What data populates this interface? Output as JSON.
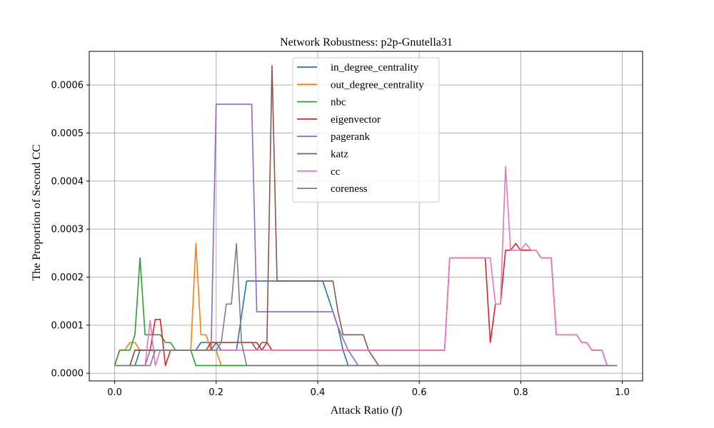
{
  "chart_data": {
    "type": "line",
    "title": "Network Robustness: p2p-Gnutella31",
    "xlabel": "Attack Ratio (",
    "xlabel_var": "f",
    "xlabel_end": ")",
    "ylabel": "The Proportion of Second CC",
    "xlim": [
      -0.05,
      1.04
    ],
    "ylim": [
      -1.6e-05,
      0.00067
    ],
    "xticks": [
      0.0,
      0.2,
      0.4,
      0.6,
      0.8,
      1.0
    ],
    "xtick_labels": [
      "0.0",
      "0.2",
      "0.4",
      "0.6",
      "0.8",
      "1.0"
    ],
    "yticks": [
      0.0,
      0.0001,
      0.0002,
      0.0003,
      0.0004,
      0.0005,
      0.0006
    ],
    "ytick_labels": [
      "0.0000",
      "0.0001",
      "0.0002",
      "0.0003",
      "0.0004",
      "0.0005",
      "0.0006"
    ],
    "grid": true,
    "legend_position": "top-center",
    "series": [
      {
        "name": "in_degree_centrality",
        "color": "#1f77b4",
        "points": [
          [
            0,
            1.6e-05
          ],
          [
            0.04,
            1.6e-05
          ],
          [
            0.05,
            4.8e-05
          ],
          [
            0.16,
            4.8e-05
          ],
          [
            0.17,
            6.4e-05
          ],
          [
            0.2,
            6.4e-05
          ],
          [
            0.21,
            4.8e-05
          ],
          [
            0.24,
            4.8e-05
          ],
          [
            0.26,
            0.000192
          ],
          [
            0.41,
            0.000192
          ],
          [
            0.43,
            0.000128
          ],
          [
            0.44,
            9.6e-05
          ],
          [
            0.45,
            4.8e-05
          ],
          [
            0.46,
            1.6e-05
          ],
          [
            0.99,
            1.6e-05
          ]
        ]
      },
      {
        "name": "out_degree_centrality",
        "color": "#ff7f0e",
        "points": [
          [
            0,
            1.6e-05
          ],
          [
            0.01,
            4.8e-05
          ],
          [
            0.02,
            4.8e-05
          ],
          [
            0.03,
            6.4e-05
          ],
          [
            0.04,
            6.4e-05
          ],
          [
            0.05,
            4.8e-05
          ],
          [
            0.15,
            4.8e-05
          ],
          [
            0.16,
            0.00027
          ],
          [
            0.17,
            8e-05
          ],
          [
            0.18,
            8e-05
          ],
          [
            0.19,
            4.8e-05
          ],
          [
            0.2,
            4.8e-05
          ],
          [
            0.21,
            1.6e-05
          ],
          [
            0.99,
            1.6e-05
          ]
        ]
      },
      {
        "name": "nbc",
        "color": "#2ca02c",
        "points": [
          [
            0,
            1.6e-05
          ],
          [
            0.01,
            4.8e-05
          ],
          [
            0.03,
            4.8e-05
          ],
          [
            0.04,
            8e-05
          ],
          [
            0.05,
            0.00024
          ],
          [
            0.06,
            8e-05
          ],
          [
            0.09,
            8e-05
          ],
          [
            0.1,
            6.4e-05
          ],
          [
            0.11,
            6.4e-05
          ],
          [
            0.12,
            4.8e-05
          ],
          [
            0.15,
            4.8e-05
          ],
          [
            0.16,
            1.6e-05
          ],
          [
            0.99,
            1.6e-05
          ]
        ]
      },
      {
        "name": "eigenvector",
        "color": "#d62728",
        "points": [
          [
            0,
            1.6e-05
          ],
          [
            0.03,
            1.6e-05
          ],
          [
            0.04,
            4.8e-05
          ],
          [
            0.07,
            4.8e-05
          ],
          [
            0.08,
            0.000112
          ],
          [
            0.09,
            0.000112
          ],
          [
            0.1,
            1.6e-05
          ],
          [
            0.11,
            4.8e-05
          ],
          [
            0.18,
            4.8e-05
          ],
          [
            0.19,
            6.4e-05
          ],
          [
            0.28,
            6.4e-05
          ],
          [
            0.29,
            4.8e-05
          ],
          [
            0.3,
            6.4e-05
          ],
          [
            0.31,
            4.8e-05
          ],
          [
            0.65,
            4.8e-05
          ],
          [
            0.66,
            0.00024
          ],
          [
            0.73,
            0.00024
          ],
          [
            0.74,
            6.4e-05
          ],
          [
            0.75,
            0.000144
          ],
          [
            0.76,
            0.000144
          ],
          [
            0.77,
            0.000256
          ],
          [
            0.78,
            0.000256
          ],
          [
            0.79,
            0.00027
          ],
          [
            0.8,
            0.000256
          ],
          [
            0.83,
            0.000256
          ],
          [
            0.84,
            0.00024
          ],
          [
            0.86,
            0.00024
          ],
          [
            0.87,
            8e-05
          ],
          [
            0.91,
            8e-05
          ],
          [
            0.92,
            6.4e-05
          ],
          [
            0.93,
            6.4e-05
          ],
          [
            0.94,
            4.8e-05
          ],
          [
            0.96,
            4.8e-05
          ],
          [
            0.97,
            1.6e-05
          ],
          [
            0.99,
            1.6e-05
          ]
        ]
      },
      {
        "name": "pagerank",
        "color": "#9467bd",
        "points": [
          [
            0,
            1.6e-05
          ],
          [
            0.06,
            1.6e-05
          ],
          [
            0.07,
            4.8e-05
          ],
          [
            0.19,
            4.8e-05
          ],
          [
            0.2,
            0.00056
          ],
          [
            0.27,
            0.00056
          ],
          [
            0.28,
            0.000128
          ],
          [
            0.42,
            0.000128
          ],
          [
            0.43,
            0.000128
          ],
          [
            0.44,
            9.6e-05
          ],
          [
            0.46,
            4.8e-05
          ],
          [
            0.47,
            3.2e-05
          ],
          [
            0.48,
            1.6e-05
          ],
          [
            0.99,
            1.6e-05
          ]
        ]
      },
      {
        "name": "katz",
        "color": "#8c564b",
        "points": [
          [
            0,
            1.6e-05
          ],
          [
            0.03,
            1.6e-05
          ],
          [
            0.04,
            4.8e-05
          ],
          [
            0.19,
            4.8e-05
          ],
          [
            0.2,
            6.4e-05
          ],
          [
            0.27,
            6.4e-05
          ],
          [
            0.28,
            4.8e-05
          ],
          [
            0.29,
            6.4e-05
          ],
          [
            0.3,
            6.4e-05
          ],
          [
            0.31,
            0.00064
          ],
          [
            0.32,
            0.000192
          ],
          [
            0.43,
            0.000192
          ],
          [
            0.44,
            0.000128
          ],
          [
            0.45,
            8e-05
          ],
          [
            0.48,
            8e-05
          ],
          [
            0.49,
            8e-05
          ],
          [
            0.5,
            4.8e-05
          ],
          [
            0.51,
            3.2e-05
          ],
          [
            0.52,
            1.6e-05
          ],
          [
            0.99,
            1.6e-05
          ]
        ]
      },
      {
        "name": "cc",
        "color": "#e377c2",
        "points": [
          [
            0,
            1.6e-05
          ],
          [
            0.06,
            1.6e-05
          ],
          [
            0.07,
            0.00011
          ],
          [
            0.08,
            1.6e-05
          ],
          [
            0.09,
            4.8e-05
          ],
          [
            0.29,
            4.8e-05
          ],
          [
            0.3,
            4.8e-05
          ],
          [
            0.31,
            4.8e-05
          ],
          [
            0.65,
            4.8e-05
          ],
          [
            0.66,
            0.00024
          ],
          [
            0.73,
            0.00024
          ],
          [
            0.74,
            0.00024
          ],
          [
            0.75,
            0.000144
          ],
          [
            0.76,
            0.000144
          ],
          [
            0.77,
            0.00043
          ],
          [
            0.78,
            0.000256
          ],
          [
            0.8,
            0.000256
          ],
          [
            0.81,
            0.00027
          ],
          [
            0.82,
            0.000256
          ],
          [
            0.83,
            0.000256
          ],
          [
            0.84,
            0.00024
          ],
          [
            0.86,
            0.00024
          ],
          [
            0.87,
            8e-05
          ],
          [
            0.91,
            8e-05
          ],
          [
            0.92,
            6.4e-05
          ],
          [
            0.93,
            6.4e-05
          ],
          [
            0.94,
            4.8e-05
          ],
          [
            0.96,
            4.8e-05
          ],
          [
            0.97,
            1.6e-05
          ],
          [
            0.99,
            1.6e-05
          ]
        ]
      },
      {
        "name": "coreness",
        "color": "#7f7f7f",
        "points": [
          [
            0,
            1.6e-05
          ],
          [
            0.07,
            1.6e-05
          ],
          [
            0.08,
            4.8e-05
          ],
          [
            0.2,
            4.8e-05
          ],
          [
            0.21,
            6.4e-05
          ],
          [
            0.22,
            0.000144
          ],
          [
            0.23,
            0.000144
          ],
          [
            0.24,
            0.00027
          ],
          [
            0.25,
            6.4e-05
          ],
          [
            0.26,
            1.6e-05
          ],
          [
            0.99,
            1.6e-05
          ]
        ]
      }
    ]
  }
}
